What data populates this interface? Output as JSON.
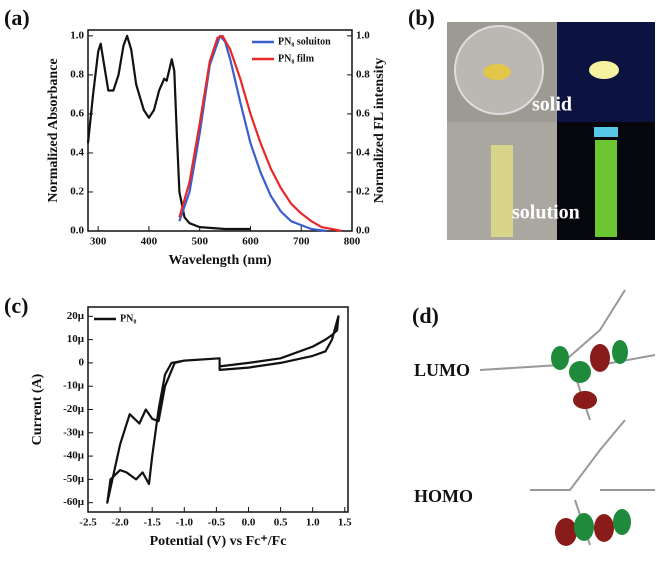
{
  "panels": [
    "(a)",
    "(b)",
    "(c)",
    "(d)"
  ],
  "photo": {
    "labels": [
      "solid",
      "solution"
    ]
  },
  "orbitals": {
    "labels": [
      "LUMO",
      "HOMO"
    ]
  },
  "chart_data": [
    {
      "type": "line",
      "x_label": "Wavelength (nm)",
      "y_label": "Normalized Absorbance",
      "y2_label": "Normalized FL intensity",
      "xlim": [
        280,
        800
      ],
      "xticks": [
        300,
        400,
        500,
        600,
        700,
        800
      ],
      "ylim": [
        0,
        1.03
      ],
      "yticks": [
        {
          "value": 0,
          "label": "0.0"
        },
        0.2,
        0.4,
        0.6,
        0.8,
        {
          "value": 1,
          "label": "1.0"
        }
      ],
      "y2lim": [
        0,
        1.03
      ],
      "y2ticks": [
        {
          "value": 0,
          "label": "0.0"
        },
        0.2,
        0.4,
        0.6,
        0.8,
        {
          "value": 1,
          "label": "1.0"
        }
      ],
      "legend": "upper right",
      "series": [
        {
          "color": "#111111",
          "x": [
            280,
            290,
            300,
            305,
            310,
            320,
            330,
            340,
            350,
            357,
            365,
            375,
            390,
            400,
            410,
            420,
            430,
            435,
            445,
            450,
            455,
            460,
            470,
            480,
            500,
            550,
            600
          ],
          "values": [
            0.45,
            0.7,
            0.92,
            0.96,
            0.88,
            0.72,
            0.72,
            0.8,
            0.95,
            1.0,
            0.93,
            0.75,
            0.62,
            0.58,
            0.62,
            0.72,
            0.78,
            0.77,
            0.88,
            0.82,
            0.5,
            0.2,
            0.07,
            0.04,
            0.02,
            0.01,
            0.01
          ]
        },
        {
          "name": "PN₈ soluiton",
          "color": "#3a5fcd",
          "axis": "y2",
          "x": [
            460,
            480,
            500,
            520,
            540,
            550,
            560,
            580,
            600,
            620,
            640,
            660,
            680,
            700,
            720,
            750
          ],
          "values": [
            0.05,
            0.2,
            0.5,
            0.85,
            1.0,
            0.97,
            0.88,
            0.66,
            0.45,
            0.3,
            0.18,
            0.1,
            0.05,
            0.03,
            0.01,
            0
          ]
        },
        {
          "name": "PN₈ film",
          "color": "#e8282b",
          "axis": "y2",
          "x": [
            460,
            480,
            500,
            520,
            535,
            545,
            560,
            580,
            600,
            620,
            640,
            660,
            680,
            700,
            720,
            740,
            760,
            780
          ],
          "values": [
            0.07,
            0.25,
            0.55,
            0.87,
            0.99,
            1.0,
            0.93,
            0.78,
            0.6,
            0.45,
            0.32,
            0.22,
            0.14,
            0.09,
            0.05,
            0.02,
            0.01,
            0
          ]
        }
      ]
    },
    {
      "type": "line",
      "x_label": "Potential (V) vs Fc⁺/Fc",
      "y_label": "Current (A)",
      "xlim": [
        -2.5,
        1.55
      ],
      "xticks": [
        -2.5,
        {
          "value": -2,
          "label": "-2.0"
        },
        -1.5,
        {
          "value": -1,
          "label": "-1.0"
        },
        -0.5,
        {
          "value": 0,
          "label": "0.0"
        },
        0.5,
        {
          "value": 1,
          "label": "1.0"
        },
        1.5
      ],
      "ylim": [
        -6.4e-05,
        2.4e-05
      ],
      "yticks": [
        {
          "value": 2e-05,
          "label": "20μ"
        },
        {
          "value": 1e-05,
          "label": "10μ"
        },
        0,
        {
          "value": -1e-05,
          "label": "-10μ"
        },
        {
          "value": -2e-05,
          "label": "-20μ"
        },
        {
          "value": -3e-05,
          "label": "-30μ"
        },
        {
          "value": -4e-05,
          "label": "-40μ"
        },
        {
          "value": -5e-05,
          "label": "-50μ"
        },
        {
          "value": -6e-05,
          "label": "-60μ"
        }
      ],
      "legend": "upper left",
      "series": [
        {
          "name": "PN₈",
          "color": "#111111",
          "x": [
            -0.45,
            -1.0,
            -1.15,
            -1.3,
            -1.4,
            -1.5,
            -1.6,
            -1.7,
            -1.85,
            -2.0,
            -2.2,
            -2.15,
            -2.0,
            -1.9,
            -1.75,
            -1.65,
            -1.55,
            -1.5,
            -1.4,
            -1.3,
            -1.2,
            -1.0,
            -0.45,
            -0.45,
            0.0,
            0.5,
            1.0,
            1.2,
            1.3,
            1.4,
            1.38,
            1.3,
            1.2,
            1.0,
            0.5,
            0.0,
            -0.45
          ],
          "values": [
            2e-06,
            1e-06,
            0,
            -1e-05,
            -2.5e-05,
            -2.4e-05,
            -2e-05,
            -2.6e-05,
            -2.2e-05,
            -3.5e-05,
            -6e-05,
            -5e-05,
            -4.6e-05,
            -4.7e-05,
            -5e-05,
            -4.7e-05,
            -5.2e-05,
            -4e-05,
            -2e-05,
            -5e-06,
            0,
            1e-06,
            2e-06,
            -3e-06,
            -2e-06,
            0,
            3e-06,
            5e-06,
            1e-05,
            2e-05,
            1.4e-05,
            1.2e-05,
            1e-05,
            7e-06,
            2e-06,
            0,
            -1.5e-06
          ]
        }
      ]
    }
  ]
}
